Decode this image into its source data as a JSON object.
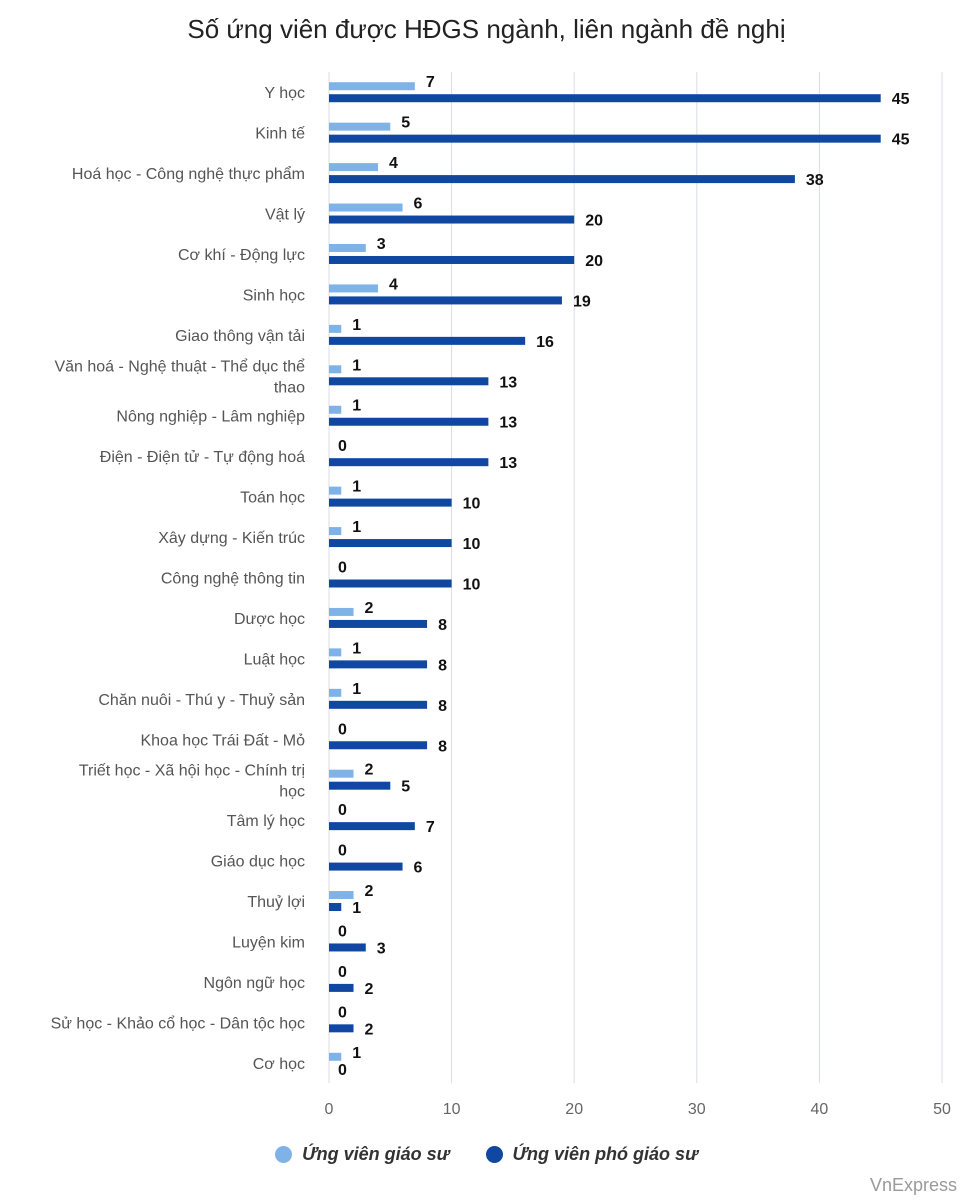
{
  "title": "Số ứng viên được HĐGS ngành, liên ngành đề nghị",
  "credit": "VnExpress",
  "colors": {
    "gs": "#7fb3e8",
    "pgs": "#0f47a1",
    "grid": "#d9dde3",
    "label": "#555555",
    "value": "#111111"
  },
  "chart_data": {
    "type": "bar",
    "orientation": "horizontal",
    "categories": [
      "Y học",
      "Kinh tế",
      "Hoá học - Công nghệ thực phẩm",
      "Vật lý",
      "Cơ khí - Động lực",
      "Sinh học",
      "Giao thông vận tải",
      "Văn hoá - Nghệ thuật - Thể dục thể thao",
      "Nông nghiệp - Lâm nghiệp",
      "Điện - Điện tử - Tự động hoá",
      "Toán học",
      "Xây dựng - Kiến trúc",
      "Công nghệ thông tin",
      "Dược học",
      "Luật học",
      "Chăn nuôi - Thú y - Thuỷ sản",
      "Khoa học Trái Đất - Mỏ",
      "Triết học - Xã hội học - Chính trị học",
      "Tâm lý học",
      "Giáo dục học",
      "Thuỷ lợi",
      "Luyện kim",
      "Ngôn ngữ học",
      "Sử học - Khảo cổ học - Dân tộc học",
      "Cơ học"
    ],
    "series": [
      {
        "name": "Ứng viên giáo sư",
        "values": [
          7,
          5,
          4,
          6,
          3,
          4,
          1,
          1,
          1,
          0,
          1,
          1,
          0,
          2,
          1,
          1,
          0,
          2,
          0,
          0,
          2,
          0,
          0,
          0,
          1
        ]
      },
      {
        "name": "Ứng viên phó giáo sư",
        "values": [
          45,
          45,
          38,
          20,
          20,
          19,
          16,
          13,
          13,
          13,
          10,
          10,
          10,
          8,
          8,
          8,
          8,
          5,
          7,
          6,
          1,
          3,
          2,
          2,
          0
        ]
      }
    ],
    "xlim": [
      0,
      50
    ],
    "xticks": [
      0,
      10,
      20,
      30,
      40,
      50
    ],
    "grid": true,
    "legend_position": "bottom"
  }
}
